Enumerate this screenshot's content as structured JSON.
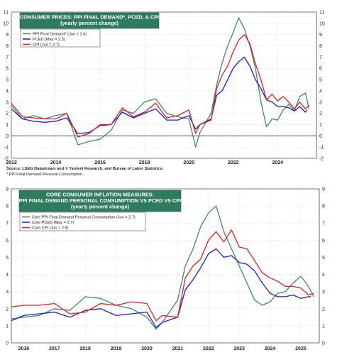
{
  "colors": {
    "title_bg": "#2e7b5e",
    "green": "#3f8a6b",
    "blue": "#1b1bd6",
    "red": "#e81c1c",
    "grid": "#c8c8c8"
  },
  "chart_data": [
    {
      "type": "line",
      "title_lines": [
        "CONSUMER PRICES: PPI FINAL DEMAND*, PCED, & CPI",
        "(yearly percent change)"
      ],
      "ylim": [
        -2,
        11
      ],
      "yticks": [
        "-2",
        "-1",
        "0",
        "1",
        "2",
        "3",
        "4",
        "5",
        "6",
        "7",
        "8",
        "9",
        "10",
        "11"
      ],
      "xticks": [
        2012,
        2014,
        2016,
        2018,
        2020,
        2022,
        2024
      ],
      "xlim": [
        2012,
        2025.75
      ],
      "zero_line": true,
      "grid": true,
      "legend_position": "top-left",
      "source": "Source: LSEG Datastream and © Yardeni Research, and Bureau of Labor Statistics.",
      "footnote": "* PPI Final Demand Personal Consumption.",
      "series": [
        {
          "name": "PPI Final Demand* (Jun = 2.4)",
          "color_key": "green",
          "x": [
            2012,
            2012.5,
            2013,
            2013.5,
            2014,
            2014.5,
            2015,
            2015.5,
            2016,
            2016.5,
            2017,
            2017.5,
            2018,
            2018.5,
            2019,
            2019.5,
            2020,
            2020.3,
            2020.5,
            2021,
            2021.25,
            2021.5,
            2021.75,
            2022,
            2022.25,
            2022.5,
            2022.75,
            2023,
            2023.25,
            2023.5,
            2023.75,
            2024,
            2024.25,
            2024.5,
            2024.75,
            2025,
            2025.25,
            2025.42
          ],
          "y": [
            2.7,
            1.5,
            1.8,
            1.5,
            1.8,
            2.0,
            -0.8,
            -0.5,
            -0.3,
            0.5,
            2.3,
            2.0,
            3.0,
            3.3,
            2.0,
            1.7,
            1.5,
            -1.0,
            0.3,
            2.0,
            4.5,
            6.5,
            8.0,
            9.2,
            10.5,
            9.5,
            8.0,
            6.0,
            3.0,
            0.8,
            1.5,
            1.4,
            2.3,
            2.8,
            2.2,
            3.5,
            3.8,
            2.4
          ]
        },
        {
          "name": "PCED (May = 2.3)",
          "color_key": "blue",
          "x": [
            2012,
            2012.5,
            2013,
            2013.5,
            2014,
            2014.5,
            2015,
            2015.5,
            2016,
            2016.5,
            2017,
            2017.5,
            2018,
            2018.5,
            2019,
            2019.5,
            2020,
            2020.3,
            2020.5,
            2021,
            2021.25,
            2021.5,
            2021.75,
            2022,
            2022.25,
            2022.5,
            2022.75,
            2023,
            2023.25,
            2023.5,
            2023.75,
            2024,
            2024.25,
            2024.5,
            2024.75,
            2025,
            2025.25,
            2025.33
          ],
          "y": [
            2.4,
            1.5,
            1.3,
            1.2,
            1.3,
            1.6,
            0.2,
            0.3,
            0.9,
            1.0,
            2.1,
            1.6,
            2.0,
            2.4,
            1.4,
            1.4,
            1.8,
            0.6,
            1.0,
            1.5,
            3.6,
            4.0,
            5.0,
            6.0,
            6.6,
            7.0,
            6.2,
            5.0,
            4.2,
            3.2,
            3.0,
            2.6,
            2.6,
            2.5,
            2.2,
            2.6,
            2.1,
            2.3
          ]
        },
        {
          "name": "CPI (Jun = 2.7)",
          "color_key": "red",
          "x": [
            2012,
            2012.5,
            2013,
            2013.5,
            2014,
            2014.5,
            2015,
            2015.5,
            2016,
            2016.5,
            2017,
            2017.5,
            2018,
            2018.5,
            2019,
            2019.5,
            2020,
            2020.3,
            2020.5,
            2021,
            2021.25,
            2021.5,
            2021.75,
            2022,
            2022.25,
            2022.5,
            2022.75,
            2023,
            2023.25,
            2023.5,
            2023.75,
            2024,
            2024.25,
            2024.5,
            2024.75,
            2025,
            2025.25,
            2025.42
          ],
          "y": [
            2.9,
            1.7,
            1.6,
            1.5,
            1.5,
            2.0,
            -0.1,
            0.2,
            1.0,
            1.0,
            2.5,
            1.7,
            2.1,
            2.9,
            1.6,
            1.8,
            2.3,
            0.2,
            1.0,
            1.4,
            4.2,
            5.4,
            6.2,
            7.5,
            8.5,
            9.0,
            8.2,
            6.4,
            5.0,
            3.2,
            3.7,
            3.1,
            3.5,
            3.0,
            2.4,
            3.0,
            2.4,
            2.7
          ]
        }
      ]
    },
    {
      "type": "line",
      "title_lines": [
        "CORE CONSUMER  INFLATION MEASURES:",
        "PPI FINAL DEMAND PERSONAL CONSUMPTION VS PCED VS CPI",
        "(yearly percent change)"
      ],
      "ylim": [
        0,
        9
      ],
      "yticks": [
        "0",
        "1",
        "2",
        "3",
        "4",
        "5",
        "6",
        "7",
        "8",
        "9"
      ],
      "xticks": [
        2016,
        2017,
        2018,
        2019,
        2020,
        2021,
        2022,
        2023,
        2024,
        2025
      ],
      "xlim": [
        2015.6,
        2025.6
      ],
      "grid": true,
      "legend_position": "top-left",
      "series": [
        {
          "name": "Core PPI Final Demand Personal Consumption (Jun = 2.7)",
          "color_key": "green",
          "x": [
            2015.6,
            2016,
            2016.5,
            2017,
            2017.5,
            2018,
            2018.5,
            2019,
            2019.5,
            2020,
            2020.3,
            2020.5,
            2021,
            2021.25,
            2021.5,
            2021.75,
            2022,
            2022.25,
            2022.5,
            2022.75,
            2023,
            2023.25,
            2023.5,
            2023.75,
            2024,
            2024.25,
            2024.5,
            2024.75,
            2025,
            2025.25,
            2025.42
          ],
          "y": [
            1.4,
            1.5,
            1.6,
            2.0,
            1.9,
            2.7,
            2.6,
            2.2,
            2.0,
            1.5,
            0.8,
            1.2,
            2.5,
            4.5,
            5.5,
            6.8,
            7.6,
            8.0,
            6.5,
            5.5,
            4.5,
            3.5,
            2.5,
            2.2,
            2.4,
            2.9,
            3.0,
            3.5,
            3.9,
            3.3,
            2.7
          ]
        },
        {
          "name": "Core PCED (May = 2.7)",
          "color_key": "blue",
          "x": [
            2015.6,
            2016,
            2016.5,
            2017,
            2017.5,
            2018,
            2018.5,
            2019,
            2019.5,
            2020,
            2020.3,
            2020.5,
            2021,
            2021.25,
            2021.5,
            2021.75,
            2022,
            2022.25,
            2022.5,
            2022.75,
            2023,
            2023.25,
            2023.5,
            2023.75,
            2024,
            2024.25,
            2024.5,
            2024.75,
            2025,
            2025.25,
            2025.33
          ],
          "y": [
            1.3,
            1.6,
            1.7,
            1.8,
            1.5,
            1.9,
            2.0,
            1.6,
            1.7,
            1.8,
            0.9,
            1.2,
            1.5,
            3.1,
            3.7,
            4.4,
            5.2,
            5.5,
            5.0,
            5.1,
            4.7,
            4.6,
            4.2,
            3.5,
            2.9,
            2.7,
            2.7,
            2.8,
            2.6,
            2.7,
            2.7
          ]
        },
        {
          "name": "Core CPI (Jun = 2.9)",
          "color_key": "red",
          "x": [
            2015.6,
            2016,
            2016.5,
            2017,
            2017.5,
            2018,
            2018.5,
            2019,
            2019.5,
            2020,
            2020.3,
            2020.5,
            2021,
            2021.25,
            2021.5,
            2021.75,
            2022,
            2022.25,
            2022.5,
            2022.75,
            2023,
            2023.25,
            2023.5,
            2023.75,
            2024,
            2024.25,
            2024.5,
            2024.75,
            2025,
            2025.25,
            2025.42
          ],
          "y": [
            2.1,
            2.2,
            2.2,
            2.3,
            1.7,
            1.8,
            2.3,
            2.2,
            2.4,
            2.3,
            1.3,
            1.6,
            1.5,
            3.8,
            4.5,
            4.9,
            6.0,
            6.5,
            5.9,
            6.6,
            5.6,
            5.5,
            4.8,
            4.1,
            3.8,
            3.6,
            3.3,
            3.3,
            3.2,
            2.8,
            2.9
          ]
        }
      ]
    }
  ]
}
